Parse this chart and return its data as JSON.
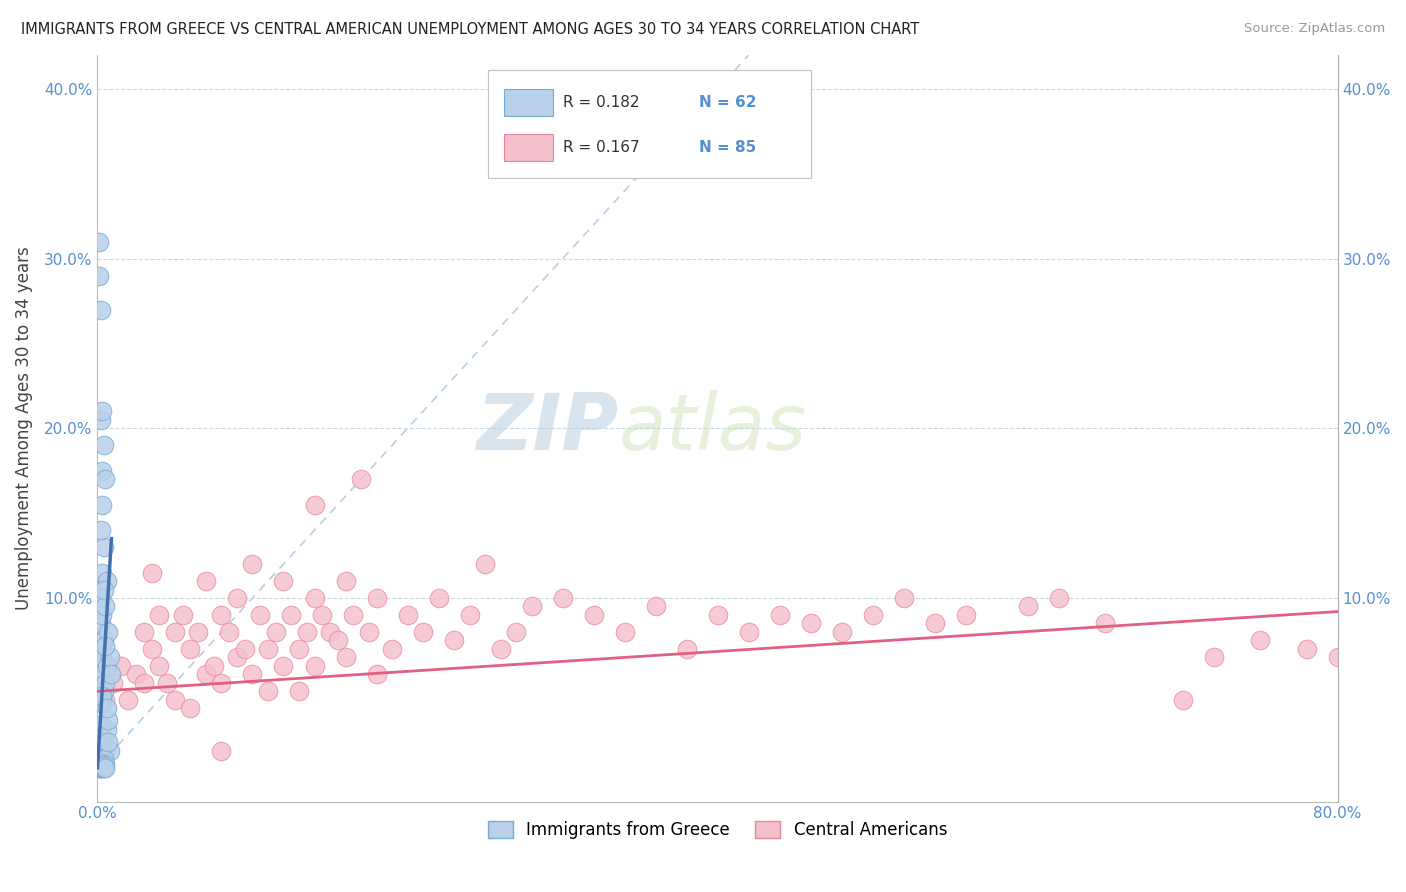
{
  "title": "IMMIGRANTS FROM GREECE VS CENTRAL AMERICAN UNEMPLOYMENT AMONG AGES 30 TO 34 YEARS CORRELATION CHART",
  "source": "Source: ZipAtlas.com",
  "ylabel": "Unemployment Among Ages 30 to 34 years",
  "xlim": [
    0,
    0.8
  ],
  "ylim": [
    -0.02,
    0.42
  ],
  "yticks": [
    0.0,
    0.1,
    0.2,
    0.3,
    0.4
  ],
  "xticks": [
    0.0,
    0.1,
    0.2,
    0.3,
    0.4,
    0.5,
    0.6,
    0.7,
    0.8
  ],
  "color_blue": "#b8d0ea",
  "color_blue_edge": "#7aaad0",
  "color_blue_line": "#4470b0",
  "color_pink": "#f5bfcc",
  "color_pink_edge": "#e888a0",
  "color_pink_line": "#e06080",
  "color_text_blue": "#5590d0",
  "legend_R_blue": "R = 0.182",
  "legend_N_blue": "N = 62",
  "legend_R_pink": "R = 0.167",
  "legend_N_pink": "N = 85",
  "legend_label_blue": "Immigrants from Greece",
  "legend_label_pink": "Central Americans",
  "watermark_zip": "ZIP",
  "watermark_atlas": "atlas",
  "blue_scatter_x": [
    0.001,
    0.001,
    0.001,
    0.001,
    0.001,
    0.002,
    0.002,
    0.002,
    0.002,
    0.002,
    0.002,
    0.002,
    0.002,
    0.002,
    0.003,
    0.003,
    0.003,
    0.003,
    0.003,
    0.003,
    0.003,
    0.003,
    0.004,
    0.004,
    0.004,
    0.004,
    0.004,
    0.004,
    0.005,
    0.005,
    0.005,
    0.005,
    0.006,
    0.006,
    0.006,
    0.007,
    0.007,
    0.008,
    0.008,
    0.009,
    0.001,
    0.001,
    0.002,
    0.002,
    0.002,
    0.003,
    0.003,
    0.003,
    0.004,
    0.004,
    0.005,
    0.005,
    0.006,
    0.007,
    0.001,
    0.002,
    0.002,
    0.003,
    0.003,
    0.004,
    0.004,
    0.005
  ],
  "blue_scatter_y": [
    0.31,
    0.29,
    0.008,
    0.003,
    0.001,
    0.27,
    0.205,
    0.1,
    0.085,
    0.07,
    0.055,
    0.025,
    0.012,
    0.004,
    0.21,
    0.175,
    0.115,
    0.09,
    0.065,
    0.04,
    0.018,
    0.007,
    0.19,
    0.13,
    0.075,
    0.045,
    0.015,
    0.002,
    0.17,
    0.095,
    0.05,
    0.008,
    0.11,
    0.06,
    0.022,
    0.08,
    0.028,
    0.065,
    0.01,
    0.055,
    0.001,
    0.0,
    0.14,
    0.038,
    0.001,
    0.155,
    0.042,
    0.003,
    0.105,
    0.005,
    0.072,
    0.002,
    0.035,
    0.015,
    0.0,
    0.002,
    0.0,
    0.001,
    0.0,
    0.0,
    0.001,
    0.0
  ],
  "pink_scatter_x": [
    0.005,
    0.01,
    0.015,
    0.02,
    0.025,
    0.03,
    0.03,
    0.035,
    0.04,
    0.04,
    0.045,
    0.05,
    0.05,
    0.055,
    0.06,
    0.06,
    0.065,
    0.07,
    0.07,
    0.075,
    0.08,
    0.08,
    0.085,
    0.09,
    0.09,
    0.095,
    0.1,
    0.1,
    0.105,
    0.11,
    0.11,
    0.115,
    0.12,
    0.12,
    0.125,
    0.13,
    0.13,
    0.135,
    0.14,
    0.14,
    0.145,
    0.15,
    0.155,
    0.16,
    0.16,
    0.165,
    0.17,
    0.175,
    0.18,
    0.18,
    0.19,
    0.2,
    0.21,
    0.22,
    0.23,
    0.24,
    0.25,
    0.26,
    0.27,
    0.28,
    0.3,
    0.32,
    0.34,
    0.36,
    0.38,
    0.4,
    0.42,
    0.44,
    0.46,
    0.48,
    0.5,
    0.52,
    0.54,
    0.56,
    0.6,
    0.62,
    0.65,
    0.7,
    0.72,
    0.75,
    0.78,
    0.8,
    0.035,
    0.08,
    0.14
  ],
  "pink_scatter_y": [
    0.04,
    0.05,
    0.06,
    0.04,
    0.055,
    0.08,
    0.05,
    0.07,
    0.09,
    0.06,
    0.05,
    0.08,
    0.04,
    0.09,
    0.07,
    0.035,
    0.08,
    0.11,
    0.055,
    0.06,
    0.09,
    0.05,
    0.08,
    0.1,
    0.065,
    0.07,
    0.12,
    0.055,
    0.09,
    0.07,
    0.045,
    0.08,
    0.11,
    0.06,
    0.09,
    0.07,
    0.045,
    0.08,
    0.1,
    0.06,
    0.09,
    0.08,
    0.075,
    0.11,
    0.065,
    0.09,
    0.17,
    0.08,
    0.1,
    0.055,
    0.07,
    0.09,
    0.08,
    0.1,
    0.075,
    0.09,
    0.12,
    0.07,
    0.08,
    0.095,
    0.1,
    0.09,
    0.08,
    0.095,
    0.07,
    0.09,
    0.08,
    0.09,
    0.085,
    0.08,
    0.09,
    0.1,
    0.085,
    0.09,
    0.095,
    0.1,
    0.085,
    0.04,
    0.065,
    0.075,
    0.07,
    0.065,
    0.115,
    0.01,
    0.155
  ],
  "blue_line_x": [
    0.0,
    0.009
  ],
  "blue_line_y": [
    0.0,
    0.135
  ],
  "pink_line_x": [
    0.0,
    0.8
  ],
  "pink_line_y": [
    0.045,
    0.092
  ],
  "diag_line_x": [
    0.0,
    0.42
  ],
  "diag_line_y": [
    0.0,
    0.42
  ]
}
